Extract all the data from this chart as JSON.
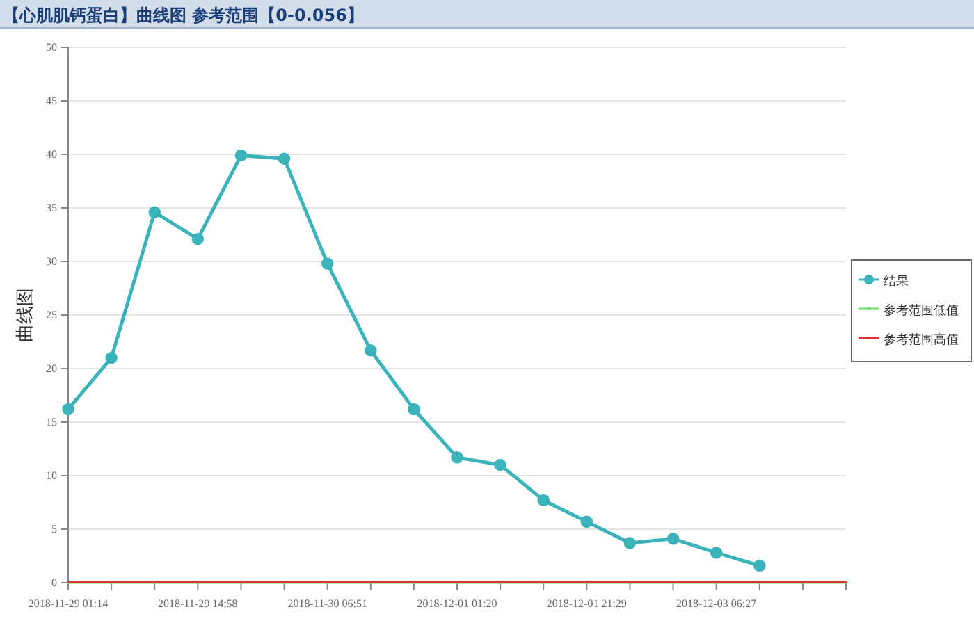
{
  "chart_data": {
    "type": "line",
    "title": "【心肌肌钙蛋白】曲线图 参考范围【0-0.056】",
    "ylabel": "曲线图",
    "categories": [
      "2018-11-29 01:14",
      null,
      null,
      "2018-11-29 14:58",
      null,
      null,
      "2018-11-30 06:51",
      null,
      null,
      "2018-12-01 01:20",
      null,
      null,
      "2018-12-01 21:29",
      null,
      null,
      "2018-12-03 06:27",
      null,
      null,
      null
    ],
    "series": [
      {
        "name": "结果",
        "color": "#3bb3bb",
        "marker": "circle",
        "values": [
          16.2,
          21.0,
          34.6,
          32.1,
          39.9,
          39.6,
          29.8,
          21.7,
          16.2,
          11.7,
          11.0,
          7.7,
          5.7,
          3.7,
          4.1,
          2.8,
          1.6,
          null,
          null
        ]
      },
      {
        "name": "参考范围低值",
        "color": "#66dd66",
        "marker": "none",
        "values": [
          0,
          0,
          0,
          0,
          0,
          0,
          0,
          0,
          0,
          0,
          0,
          0,
          0,
          0,
          0,
          0,
          0,
          0,
          0
        ]
      },
      {
        "name": "参考范围高值",
        "color": "#dd3333",
        "marker": "none",
        "values": [
          0.056,
          0.056,
          0.056,
          0.056,
          0.056,
          0.056,
          0.056,
          0.056,
          0.056,
          0.056,
          0.056,
          0.056,
          0.056,
          0.056,
          0.056,
          0.056,
          0.056,
          0.056,
          0.056
        ]
      }
    ],
    "ylim": [
      0,
      50
    ],
    "yticks": [
      0,
      5,
      10,
      15,
      20,
      25,
      30,
      35,
      40,
      45,
      50
    ],
    "grid": "y",
    "legend": "right",
    "line_style": "solid"
  }
}
